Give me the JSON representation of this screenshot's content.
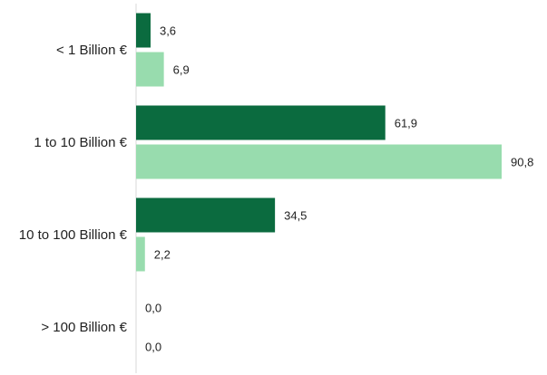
{
  "colors": {
    "series_a": "#0b6b3f",
    "series_b": "#98dcae",
    "axis": "#d9d9d9"
  },
  "chart_data": {
    "type": "bar",
    "orientation": "horizontal",
    "categories": [
      "< 1 Billion €",
      "1 to 10 Billion €",
      "10 to 100 Billion €",
      "> 100 Billion €"
    ],
    "series": [
      {
        "values": [
          3.6,
          61.9,
          34.5,
          0.0
        ],
        "labels": [
          "3,6",
          "61,9",
          "34,5",
          "0,0"
        ]
      },
      {
        "values": [
          6.9,
          90.8,
          2.2,
          0.0
        ],
        "labels": [
          "6,9",
          "90,8",
          "2,2",
          "0,0"
        ]
      }
    ],
    "xlim": [
      0,
      90.8
    ],
    "grid": false,
    "legend": "none"
  }
}
